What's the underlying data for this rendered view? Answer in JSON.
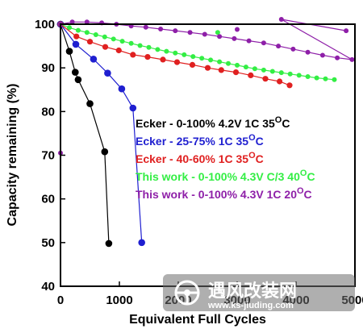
{
  "chart_data": {
    "type": "scatter",
    "title": "",
    "xlabel": "Equivalent Full Cycles",
    "ylabel": "Capacity remaining (%)",
    "xlim": [
      0,
      5000
    ],
    "ylim": [
      40,
      100
    ],
    "x_ticks": [
      "0",
      "1000",
      "2000",
      "3000",
      "4000",
      "5000"
    ],
    "y_ticks": [
      "40",
      "50",
      "60",
      "70",
      "80",
      "90",
      "100"
    ],
    "grid": false,
    "legend_position": "center-right",
    "series": [
      {
        "name": "Ecker - 0-100% 4.2V 1C 35",
        "superscript": "O",
        "unit": "C",
        "color": "#000000",
        "connected": true,
        "points": [
          [
            0,
            100
          ],
          [
            150,
            93.8
          ],
          [
            250,
            89
          ],
          [
            300,
            87.3
          ],
          [
            500,
            81.8
          ],
          [
            750,
            70.8
          ],
          [
            820,
            49.8
          ]
        ]
      },
      {
        "name": "Ecker - 25-75% 1C 35",
        "superscript": "O",
        "unit": "C",
        "color": "#1f1fd0",
        "connected": true,
        "points": [
          [
            0,
            100
          ],
          [
            260,
            95.4
          ],
          [
            560,
            92
          ],
          [
            800,
            88.8
          ],
          [
            1040,
            85.2
          ],
          [
            1230,
            80.8
          ],
          [
            1380,
            50
          ]
        ]
      },
      {
        "name": "Ecker - 40-60% 1C 35",
        "superscript": "O",
        "unit": "C",
        "color": "#e02020",
        "connected": true,
        "points": [
          [
            0,
            100
          ],
          [
            270,
            97.2
          ],
          [
            500,
            96
          ],
          [
            760,
            94.8
          ],
          [
            990,
            94
          ],
          [
            1230,
            93
          ],
          [
            1480,
            92.5
          ],
          [
            1740,
            91.9
          ],
          [
            1980,
            91.3
          ],
          [
            2240,
            90.7
          ],
          [
            2500,
            90
          ],
          [
            2730,
            89.5
          ],
          [
            2980,
            89
          ],
          [
            3230,
            88.3
          ],
          [
            3480,
            87.5
          ],
          [
            3720,
            86.9
          ],
          [
            3890,
            86
          ]
        ]
      },
      {
        "name": "This work - 0-100% 4.3V C/3 40",
        "superscript": "O",
        "unit": "C",
        "color": "#33ee44",
        "connected": true,
        "points": [
          [
            0,
            100
          ],
          [
            150,
            99.2
          ],
          [
            300,
            98.6
          ],
          [
            450,
            98.1
          ],
          [
            600,
            97.6
          ],
          [
            750,
            97.1
          ],
          [
            900,
            96.6
          ],
          [
            1050,
            96.1
          ],
          [
            1200,
            95.6
          ],
          [
            1350,
            95.1
          ],
          [
            1500,
            94.7
          ],
          [
            1650,
            94.2
          ],
          [
            1800,
            93.8
          ],
          [
            1950,
            93.4
          ],
          [
            2100,
            93
          ],
          [
            2250,
            92.6
          ],
          [
            2400,
            92.2
          ],
          [
            2550,
            91.8
          ],
          [
            2700,
            91.4
          ],
          [
            2850,
            91
          ],
          [
            3000,
            90.6
          ],
          [
            3150,
            90.2
          ],
          [
            3300,
            89.8
          ],
          [
            3450,
            89.5
          ],
          [
            3600,
            89.2
          ],
          [
            3750,
            88.9
          ],
          [
            3900,
            88.6
          ],
          [
            4050,
            88.3
          ],
          [
            4200,
            88
          ],
          [
            4350,
            87.7
          ],
          [
            4500,
            87.5
          ],
          [
            4650,
            87.3
          ],
          [
            2670,
            98.1
          ]
        ]
      },
      {
        "name": "This work - 0-100% 4.3V 1C 20",
        "superscript": "O",
        "unit": "C",
        "color": "#8e1fa8",
        "connected": true,
        "points": [
          [
            0,
            100
          ],
          [
            200,
            100.5
          ],
          [
            450,
            100.5
          ],
          [
            700,
            100.3
          ],
          [
            950,
            100
          ],
          [
            1200,
            99.6
          ],
          [
            1450,
            99.3
          ],
          [
            1700,
            98.9
          ],
          [
            1950,
            98.5
          ],
          [
            2200,
            98.1
          ],
          [
            2450,
            97.7
          ],
          [
            2700,
            97.2
          ],
          [
            2950,
            96.7
          ],
          [
            3200,
            96.2
          ],
          [
            3450,
            95.7
          ],
          [
            3700,
            95
          ],
          [
            3950,
            94.3
          ],
          [
            4200,
            93.6
          ],
          [
            4450,
            92.9
          ],
          [
            4700,
            92.3
          ],
          [
            4950,
            91.9
          ],
          [
            3000,
            98.8
          ],
          [
            3750,
            101.1
          ],
          [
            4850,
            98.5
          ],
          [
            0,
            70.5
          ]
        ]
      }
    ]
  },
  "watermark": {
    "brand": "遇风改装网",
    "url": "www.ks-jiuding.com"
  }
}
